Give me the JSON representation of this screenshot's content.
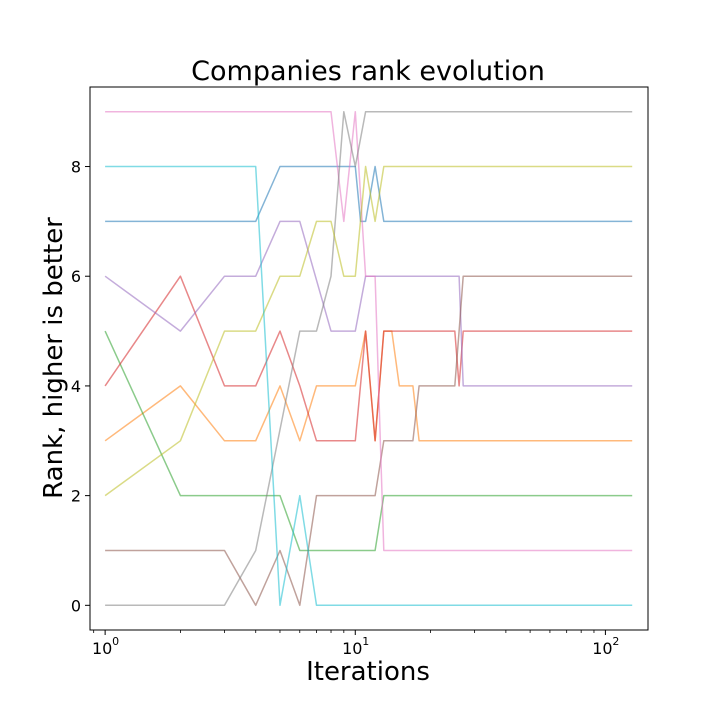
{
  "chart_data": {
    "type": "line",
    "title": "Companies rank evolution",
    "xlabel": "Iterations",
    "ylabel": "Rank, higher is better",
    "xscale": "log",
    "xlim": [
      0.87,
      148
    ],
    "ylim": [
      -0.45,
      9.45
    ],
    "x_ticks": [
      {
        "value": 1,
        "base": "10",
        "exp": "0"
      },
      {
        "value": 10,
        "base": "10",
        "exp": "1"
      },
      {
        "value": 100,
        "base": "10",
        "exp": "2"
      }
    ],
    "y_ticks": [
      0,
      2,
      4,
      6,
      8
    ],
    "grid": false,
    "legend": "none",
    "series": [
      {
        "color": "#1f77b4",
        "values": [
          [
            1,
            7
          ],
          [
            4,
            7
          ],
          [
            5,
            8
          ],
          [
            10,
            8
          ],
          [
            10.5,
            7
          ],
          [
            11,
            7
          ],
          [
            12,
            8
          ],
          [
            13,
            7
          ],
          [
            128,
            7
          ]
        ]
      },
      {
        "color": "#ff7f0e",
        "values": [
          [
            1,
            3
          ],
          [
            2,
            4
          ],
          [
            3,
            3
          ],
          [
            4,
            3
          ],
          [
            5,
            4
          ],
          [
            6,
            3
          ],
          [
            7,
            4
          ],
          [
            10,
            4
          ],
          [
            11,
            5
          ],
          [
            12,
            3
          ],
          [
            13,
            5
          ],
          [
            14,
            5
          ],
          [
            15,
            4
          ],
          [
            17,
            4
          ],
          [
            18,
            3
          ],
          [
            128,
            3
          ]
        ]
      },
      {
        "color": "#2ca02c",
        "values": [
          [
            1,
            5
          ],
          [
            2,
            2
          ],
          [
            5,
            2
          ],
          [
            6,
            1
          ],
          [
            12,
            1
          ],
          [
            13,
            2
          ],
          [
            128,
            2
          ]
        ]
      },
      {
        "color": "#d62728",
        "values": [
          [
            1,
            4
          ],
          [
            2,
            6
          ],
          [
            3,
            4
          ],
          [
            4,
            4
          ],
          [
            5,
            5
          ],
          [
            6,
            4
          ],
          [
            7,
            3
          ],
          [
            10,
            3
          ],
          [
            11,
            5
          ],
          [
            12,
            3
          ],
          [
            13,
            5
          ],
          [
            25,
            5
          ],
          [
            26,
            4
          ],
          [
            27,
            5
          ],
          [
            128,
            5
          ]
        ]
      },
      {
        "color": "#9467bd",
        "values": [
          [
            1,
            6
          ],
          [
            2,
            5
          ],
          [
            3,
            6
          ],
          [
            4,
            6
          ],
          [
            5,
            7
          ],
          [
            6,
            7
          ],
          [
            8,
            5
          ],
          [
            10,
            5
          ],
          [
            11,
            6
          ],
          [
            26,
            6
          ],
          [
            27,
            4
          ],
          [
            128,
            4
          ]
        ]
      },
      {
        "color": "#8c564b",
        "values": [
          [
            1,
            1
          ],
          [
            3,
            1
          ],
          [
            4,
            0
          ],
          [
            5,
            1
          ],
          [
            6,
            0
          ],
          [
            7,
            2
          ],
          [
            12,
            2
          ],
          [
            13,
            3
          ],
          [
            17,
            3
          ],
          [
            18,
            4
          ],
          [
            25,
            4
          ],
          [
            26,
            5
          ],
          [
            27,
            6
          ],
          [
            128,
            6
          ]
        ]
      },
      {
        "color": "#e377c2",
        "values": [
          [
            1,
            9
          ],
          [
            8,
            9
          ],
          [
            9,
            7
          ],
          [
            10,
            9
          ],
          [
            11,
            6
          ],
          [
            12,
            6
          ],
          [
            13,
            1
          ],
          [
            128,
            1
          ]
        ]
      },
      {
        "color": "#7f7f7f",
        "values": [
          [
            1,
            0
          ],
          [
            3,
            0
          ],
          [
            4,
            1
          ],
          [
            6,
            5
          ],
          [
            7,
            5
          ],
          [
            8,
            6
          ],
          [
            9,
            9
          ],
          [
            10,
            8
          ],
          [
            11,
            9
          ],
          [
            128,
            9
          ]
        ]
      },
      {
        "color": "#bcbd22",
        "values": [
          [
            1,
            2
          ],
          [
            2,
            3
          ],
          [
            3,
            5
          ],
          [
            4,
            5
          ],
          [
            5,
            6
          ],
          [
            6,
            6
          ],
          [
            7,
            7
          ],
          [
            8,
            7
          ],
          [
            9,
            6
          ],
          [
            10,
            6
          ],
          [
            11,
            8
          ],
          [
            12,
            7
          ],
          [
            13,
            8
          ],
          [
            128,
            8
          ]
        ]
      },
      {
        "color": "#17becf",
        "values": [
          [
            1,
            8
          ],
          [
            4,
            8
          ],
          [
            5,
            0
          ],
          [
            6,
            2
          ],
          [
            7,
            0
          ],
          [
            128,
            0
          ]
        ]
      }
    ]
  }
}
